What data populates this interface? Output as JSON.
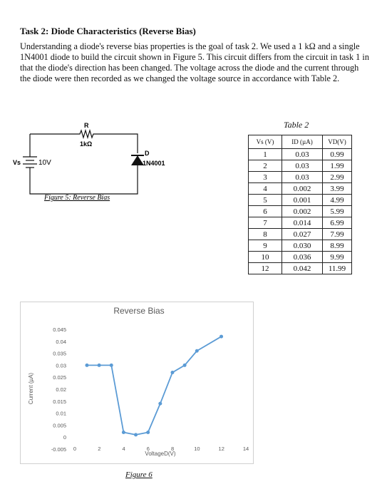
{
  "header": {
    "title": "Task 2: Diode Characteristics (Reverse Bias)"
  },
  "paragraph": "Understanding a diode's reverse bias properties is the goal of task 2. We used a 1 kΩ and a single 1N4001 diode to build the circuit shown in Figure 5. This circuit differs from the circuit in task 1 in that the diode's direction has been changed. The voltage across the diode and the current through the diode were then recorded as we changed the voltage source in accordance with Table 2.",
  "circuit": {
    "resistor_name": "R",
    "resistor_value": "1kΩ",
    "diode_name": "D",
    "diode_model": "1N4001",
    "source_name": "Vs",
    "source_value": "10V",
    "caption": "Figure 5: Reverse Bias"
  },
  "table": {
    "caption": "Table 2",
    "header": [
      "Vs (V)",
      "ID (µA)",
      "VD(V)"
    ],
    "rows": [
      [
        "1",
        "0.03",
        "0.99"
      ],
      [
        "2",
        "0.03",
        "1.99"
      ],
      [
        "3",
        "0.03",
        "2.99"
      ],
      [
        "4",
        "0.002",
        "3.99"
      ],
      [
        "5",
        "0.001",
        "4.99"
      ],
      [
        "6",
        "0.002",
        "5.99"
      ],
      [
        "7",
        "0.014",
        "6.99"
      ],
      [
        "8",
        "0.027",
        "7.99"
      ],
      [
        "9",
        "0.030",
        "8.99"
      ],
      [
        "10",
        "0.036",
        "9.99"
      ],
      [
        "12",
        "0.042",
        "11.99"
      ]
    ]
  },
  "chart_data": {
    "type": "line",
    "title": "Reverse Bias",
    "x_label": "VoltageD(V)",
    "y_label": "Current (µA)",
    "x": [
      0.99,
      1.99,
      2.99,
      3.99,
      4.99,
      5.99,
      6.99,
      7.99,
      8.99,
      9.99,
      11.99
    ],
    "values": [
      0.03,
      0.03,
      0.03,
      0.002,
      0.001,
      0.002,
      0.014,
      0.027,
      0.03,
      0.036,
      0.042
    ],
    "color": "#5b9bd5",
    "xlim": [
      0,
      14
    ],
    "xticks": [
      0,
      2,
      4,
      6,
      8,
      10,
      12,
      14
    ],
    "ylim": [
      -0.005,
      0.045
    ],
    "yticks": [
      -0.005,
      0,
      0.005,
      0.01,
      0.015,
      0.02,
      0.025,
      0.03,
      0.035,
      0.04,
      0.045
    ]
  },
  "figure_caption": "Figure 6"
}
